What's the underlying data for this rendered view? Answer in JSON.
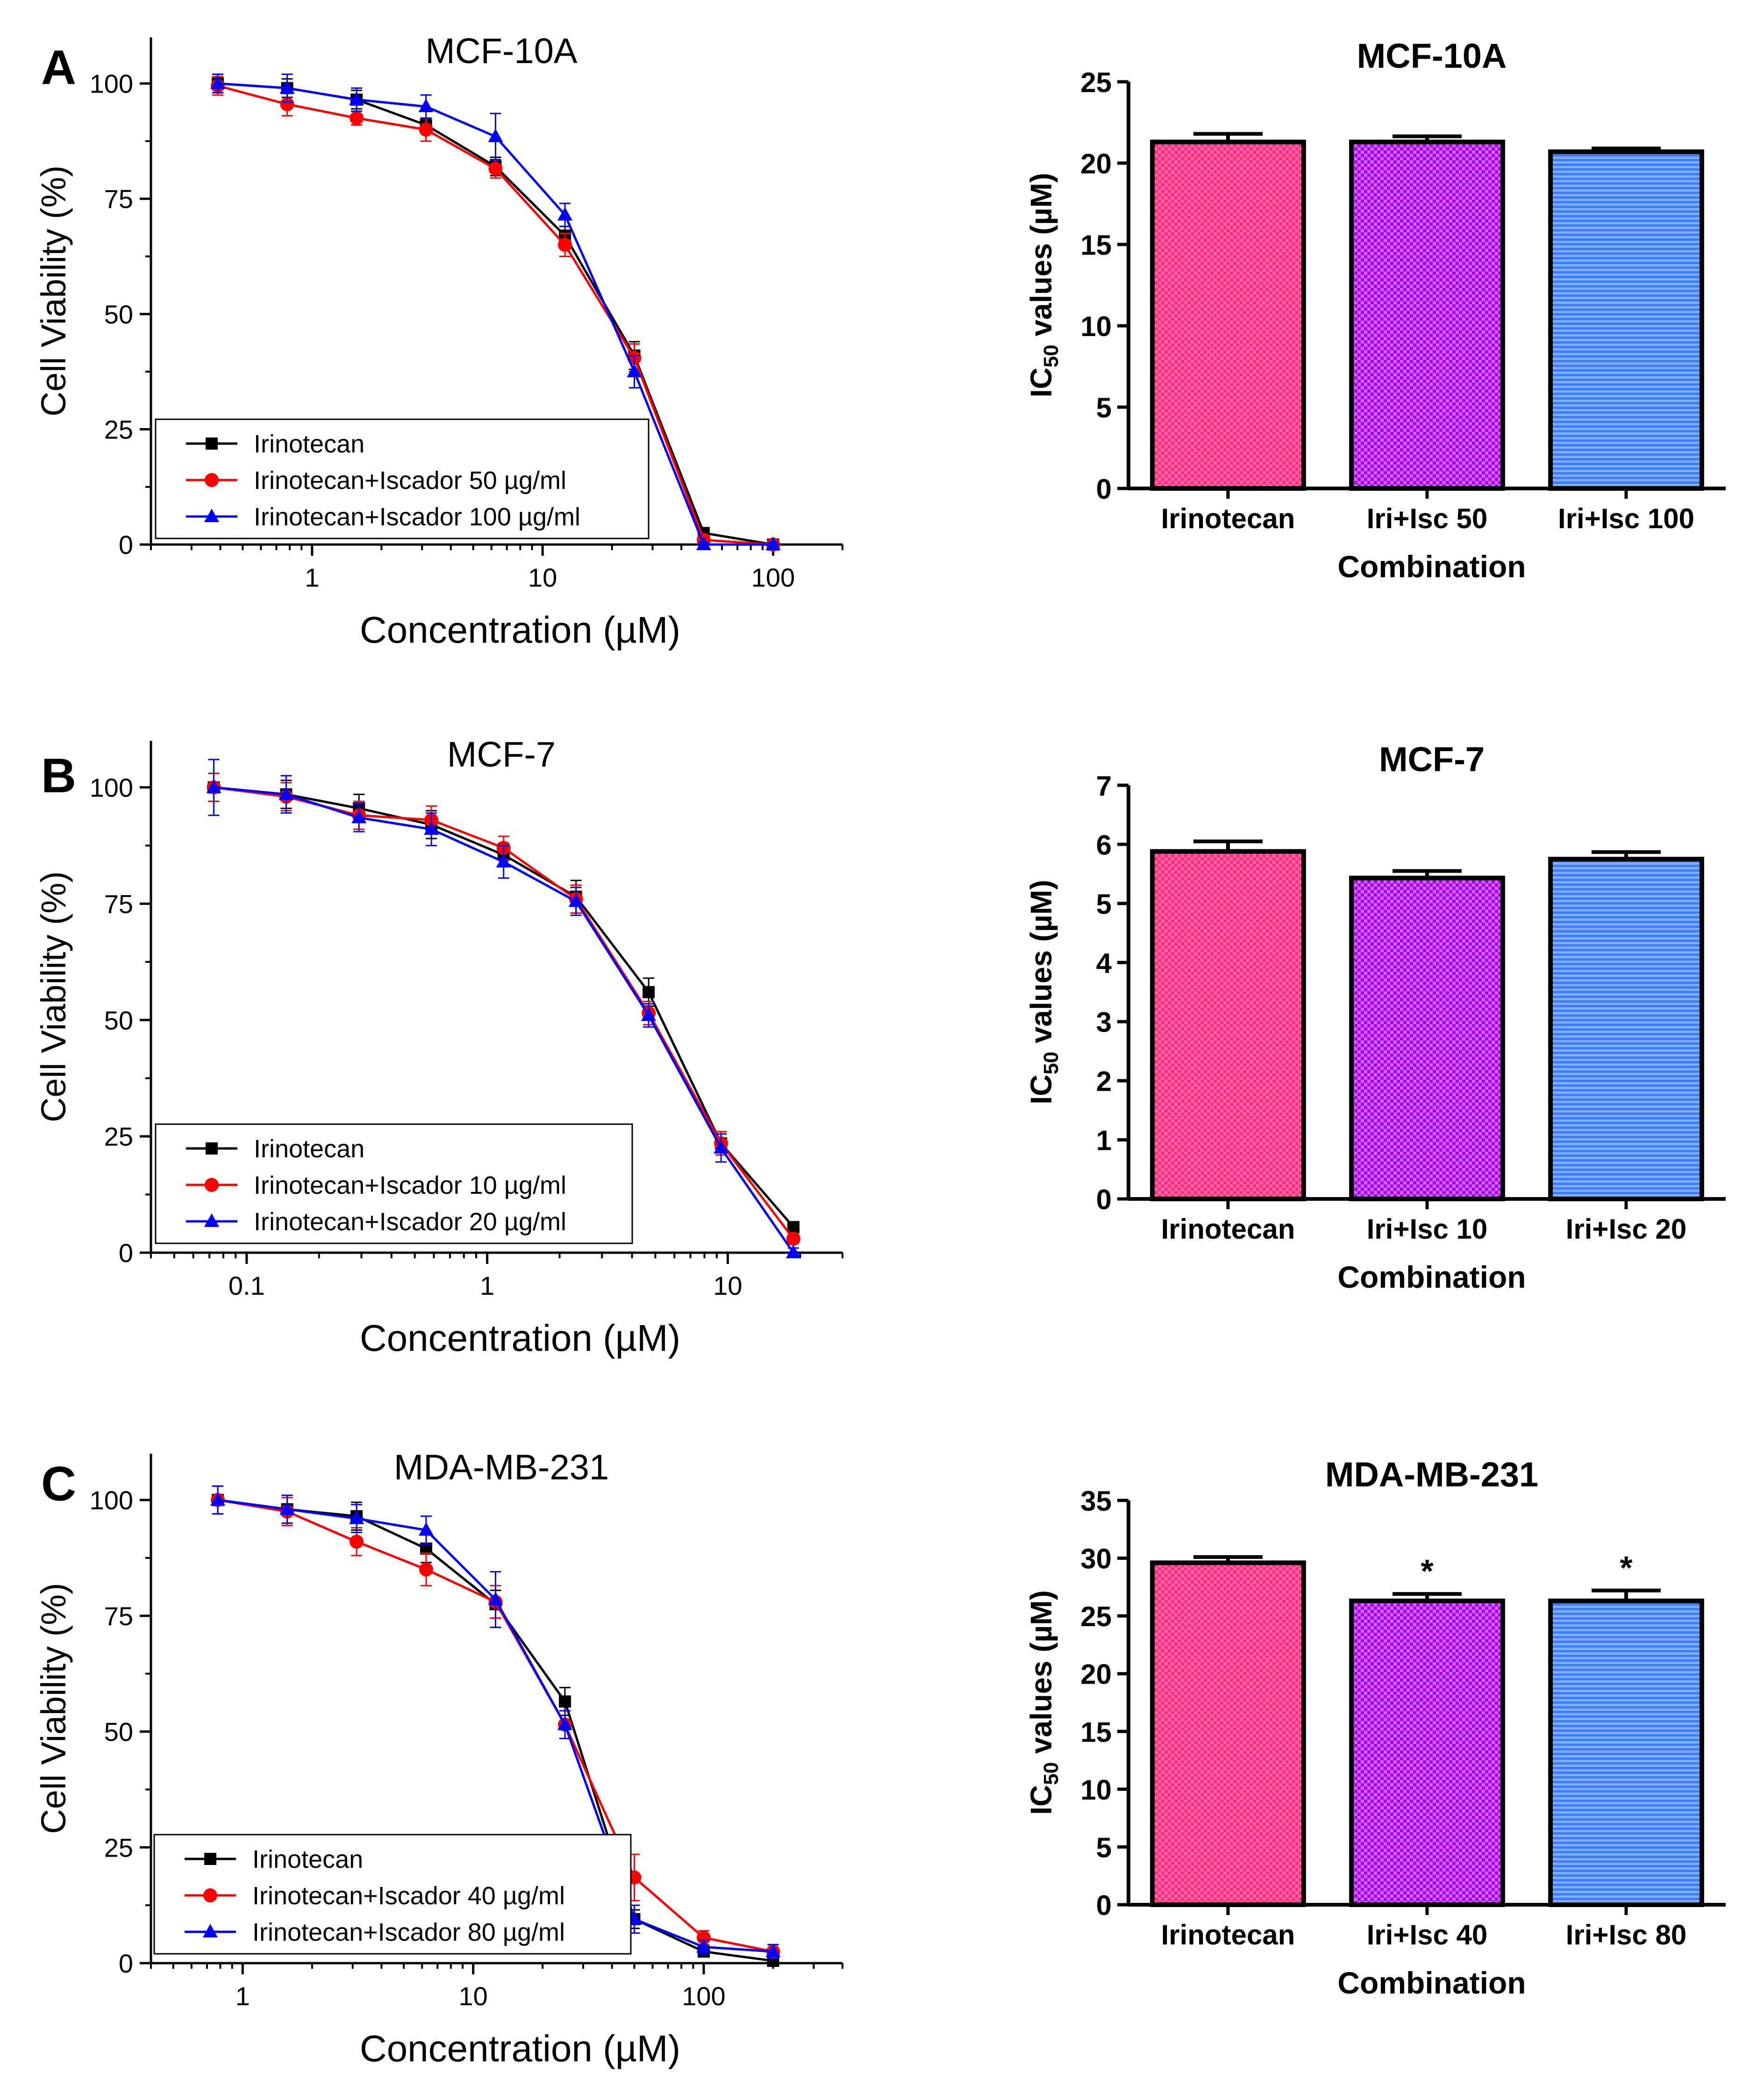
{
  "chart_data": [
    {
      "id": "A-line",
      "type": "line",
      "x_scale": "log",
      "panel_label": "A",
      "title": "MCF-10A",
      "xlabel": "Concentration (µM)",
      "ylabel": "Cell Viability (%)",
      "xlim": [
        0.2,
        200
      ],
      "ylim": [
        0,
        110
      ],
      "xticks": [
        1,
        10,
        100
      ],
      "xtick_labels": [
        "1",
        "10",
        "100"
      ],
      "yticks": [
        0,
        25,
        50,
        75,
        100
      ],
      "ytick_labels": [
        "0",
        "25",
        "50",
        "75",
        "100"
      ],
      "x": [
        0.39,
        0.78,
        1.56,
        3.12,
        6.25,
        12.5,
        25,
        50,
        100
      ],
      "series": [
        {
          "name": "Irinotecan",
          "color": "#000000",
          "marker": "square",
          "values": [
            100,
            99,
            96.5,
            91,
            82,
            67,
            41,
            2.5,
            0
          ],
          "errors": [
            2,
            2,
            2,
            1.5,
            2,
            2,
            3,
            1,
            0.5
          ]
        },
        {
          "name": "Irinotecan+Iscador 50 µg/ml",
          "color": "#ff0000",
          "marker": "circle",
          "values": [
            99.5,
            95.5,
            92.5,
            90,
            81.5,
            65,
            40.5,
            1,
            0
          ],
          "errors": [
            2,
            2.5,
            1.5,
            2.5,
            2,
            2.5,
            3,
            1,
            0.5
          ]
        },
        {
          "name": "Irinotecan+Iscador 100 µg/ml",
          "color": "#0000ff",
          "marker": "triangle",
          "values": [
            100,
            99,
            96.5,
            95,
            88.5,
            71.5,
            37.5,
            0,
            0
          ],
          "errors": [
            2,
            3,
            2.5,
            2.5,
            5,
            2.5,
            3.5,
            0.5,
            0.5
          ]
        }
      ]
    },
    {
      "id": "A-bar",
      "type": "bar",
      "title": "MCF-10A",
      "xlabel": "Combination",
      "ylabel": "IC50 values (µM)",
      "ylabel_main": "IC",
      "ylabel_sub": "50",
      "ylabel_rest": " values (µM)",
      "ylim": [
        0,
        25
      ],
      "yticks": [
        0,
        5,
        10,
        15,
        20,
        25
      ],
      "ytick_labels": [
        "0",
        "5",
        "10",
        "15",
        "20",
        "25"
      ],
      "categories": [
        "Irinotecan",
        "Iri+Isc 50",
        "Iri+Isc 100"
      ],
      "values": [
        21.3,
        21.3,
        20.7
      ],
      "errors": [
        0.5,
        0.35,
        0.2
      ],
      "annotations": [
        "",
        "",
        ""
      ],
      "colors": [
        "#ff2d7e",
        "#b000ff",
        "#4c8cff"
      ]
    },
    {
      "id": "B-line",
      "type": "line",
      "x_scale": "log",
      "panel_label": "B",
      "title": "MCF-7",
      "xlabel": "Concentration (µM)",
      "ylabel": "Cell Viability (%)",
      "xlim": [
        0.04,
        30
      ],
      "ylim": [
        0,
        110
      ],
      "xticks": [
        0.1,
        1,
        10
      ],
      "xtick_labels": [
        "0.1",
        "1",
        "10"
      ],
      "yticks": [
        0,
        25,
        50,
        75,
        100
      ],
      "ytick_labels": [
        "0",
        "25",
        "50",
        "75",
        "100"
      ],
      "x": [
        0.073,
        0.146,
        0.293,
        0.586,
        1.17,
        2.34,
        4.69,
        9.38,
        18.75
      ],
      "series": [
        {
          "name": "Irinotecan",
          "color": "#000000",
          "marker": "square",
          "values": [
            100,
            98.5,
            95.5,
            92,
            85.5,
            76.5,
            56,
            23.5,
            5.5
          ],
          "errors": [
            3,
            3,
            3,
            3,
            2.5,
            3.5,
            3,
            2.5,
            1
          ]
        },
        {
          "name": "Irinotecan+Iscador 10 µg/ml",
          "color": "#ff0000",
          "marker": "circle",
          "values": [
            100,
            98,
            94,
            93,
            87,
            76,
            51.5,
            23.5,
            3
          ],
          "errors": [
            3,
            3,
            3,
            3,
            2.5,
            3,
            2.5,
            2.5,
            1
          ]
        },
        {
          "name": "Irinotecan+Iscador 20 µg/ml",
          "color": "#0000ff",
          "marker": "triangle",
          "values": [
            100,
            98.5,
            93.5,
            91,
            84,
            75.5,
            51,
            22.5,
            0
          ],
          "errors": [
            6,
            4,
            3,
            3.5,
            3.5,
            3,
            2.5,
            3,
            1
          ]
        }
      ]
    },
    {
      "id": "B-bar",
      "type": "bar",
      "title": "MCF-7",
      "xlabel": "Combination",
      "ylabel": "IC50 values (µM)",
      "ylabel_main": "IC",
      "ylabel_sub": "50",
      "ylabel_rest": " values (µM)",
      "ylim": [
        0,
        7
      ],
      "yticks": [
        0,
        1,
        2,
        3,
        4,
        5,
        6,
        7
      ],
      "ytick_labels": [
        "0",
        "1",
        "2",
        "3",
        "4",
        "5",
        "6",
        "7"
      ],
      "categories": [
        "Irinotecan",
        "Iri+Isc 10",
        "Iri+Isc 20"
      ],
      "values": [
        5.88,
        5.43,
        5.75
      ],
      "errors": [
        0.17,
        0.12,
        0.12
      ],
      "annotations": [
        "",
        "",
        ""
      ],
      "colors": [
        "#ff2d7e",
        "#b000ff",
        "#4c8cff"
      ]
    },
    {
      "id": "C-line",
      "type": "line",
      "x_scale": "log",
      "panel_label": "C",
      "title": "MDA-MB-231",
      "xlabel": "Concentration (µM)",
      "ylabel": "Cell Viability (%)",
      "xlim": [
        0.4,
        400
      ],
      "ylim": [
        0,
        110
      ],
      "xticks": [
        1,
        10,
        100
      ],
      "xtick_labels": [
        "1",
        "10",
        "100"
      ],
      "yticks": [
        0,
        25,
        50,
        75,
        100
      ],
      "ytick_labels": [
        "0",
        "25",
        "50",
        "75",
        "100"
      ],
      "x": [
        0.78,
        1.56,
        3.12,
        6.25,
        12.5,
        25,
        50,
        100,
        200
      ],
      "series": [
        {
          "name": "Irinotecan",
          "color": "#000000",
          "marker": "square",
          "values": [
            100,
            98,
            96.5,
            89.5,
            77.5,
            56.5,
            9.5,
            2.5,
            0.5
          ],
          "errors": [
            3,
            3,
            3,
            3,
            3,
            3,
            2,
            1,
            0.5
          ]
        },
        {
          "name": "Irinotecan+Iscador 40 µg/ml",
          "color": "#ff0000",
          "marker": "circle",
          "values": [
            100,
            97.5,
            91,
            85,
            78,
            51.5,
            18.5,
            5.5,
            2.5
          ],
          "errors": [
            3,
            3,
            3,
            3.5,
            3.5,
            3,
            5,
            1.5,
            1.5
          ]
        },
        {
          "name": "Irinotecan+Iscador 80 µg/ml",
          "color": "#0000ff",
          "marker": "triangle",
          "values": [
            100,
            98,
            96,
            93.5,
            78.5,
            51.5,
            9.5,
            3.5,
            2.5
          ],
          "errors": [
            3,
            3,
            3,
            3,
            6,
            3,
            3,
            1.5,
            1.5
          ]
        }
      ]
    },
    {
      "id": "C-bar",
      "type": "bar",
      "title": "MDA-MB-231",
      "xlabel": "Combination",
      "ylabel": "IC50 values (µM)",
      "ylabel_main": "IC",
      "ylabel_sub": "50",
      "ylabel_rest": " values (µM)",
      "ylim": [
        0,
        35
      ],
      "yticks": [
        0,
        5,
        10,
        15,
        20,
        25,
        30,
        35
      ],
      "ytick_labels": [
        "0",
        "5",
        "10",
        "15",
        "20",
        "25",
        "30",
        "35"
      ],
      "categories": [
        "Irinotecan",
        "Iri+Isc 40",
        "Iri+Isc 80"
      ],
      "values": [
        29.6,
        26.3,
        26.3
      ],
      "errors": [
        0.5,
        0.6,
        0.9
      ],
      "annotations": [
        "",
        "*",
        "*"
      ],
      "colors": [
        "#ff2d7e",
        "#b000ff",
        "#4c8cff"
      ]
    }
  ]
}
